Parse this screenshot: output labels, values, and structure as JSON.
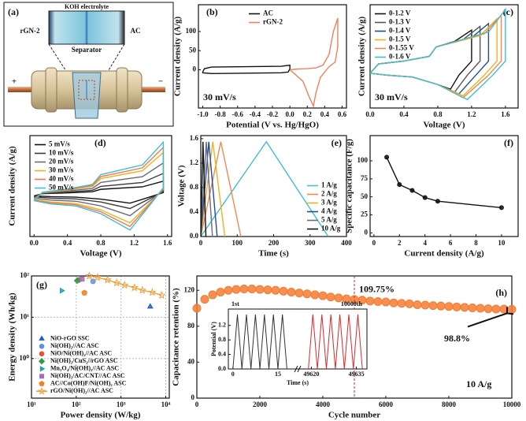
{
  "schematic": {
    "panel_label": "(a)",
    "electrolyte": "KOH electrolyte",
    "left_electrode": "rGN-2",
    "right_electrode": "AC",
    "separator": "Separator",
    "positive": "+",
    "negative": "−"
  },
  "chart_data": [
    {
      "type": "line",
      "panel_label": "(b)",
      "xlabel": "Potential (V vs. Hg/HgO)",
      "ylabel": "Current density (A/g)",
      "xlim": [
        -1.05,
        0.65
      ],
      "xticks": [
        {
          "value": -1.0,
          "label": "-1.0"
        },
        -0.8,
        -0.6,
        -0.4,
        -0.2,
        {
          "value": 0,
          "label": "0.0"
        },
        0.2,
        0.4,
        0.6
      ],
      "ylim": [
        -100,
        170
      ],
      "yticks": [
        0,
        50,
        100
      ],
      "legend": "upper center",
      "annotations": [
        {
          "text": "30 mV/s"
        }
      ],
      "series": [
        {
          "name": "AC",
          "color": "#111111",
          "x": [
            -1.0,
            -0.98,
            -0.9,
            -0.5,
            -0.1,
            0,
            0,
            -0.02,
            -0.1,
            -0.5,
            -0.9,
            -1.0,
            -1.0
          ],
          "values": [
            -5,
            3,
            7,
            8,
            9,
            12,
            2,
            -6,
            -8,
            -9,
            -10,
            -8,
            -5
          ]
        },
        {
          "name": "rGN-2",
          "color": "#f0805a",
          "x": [
            0,
            0.1,
            0.2,
            0.3,
            0.38,
            0.45,
            0.5,
            0.55,
            0.55,
            0.52,
            0.45,
            0.35,
            0.3,
            0.27,
            0.22,
            0.15,
            0.05,
            0
          ],
          "values": [
            0,
            2,
            3,
            5,
            12,
            40,
            100,
            135,
            60,
            20,
            8,
            -20,
            -60,
            -95,
            -70,
            -30,
            -10,
            0
          ]
        }
      ]
    },
    {
      "type": "line",
      "panel_label": "(c)",
      "xlabel": "Voltage (V)",
      "ylabel": "Current density (A/g)",
      "xlim": [
        0,
        1.75
      ],
      "xticks": [
        {
          "value": 0,
          "label": "0.0"
        },
        0.4,
        0.8,
        1.2,
        1.6
      ],
      "ylim": [
        -4.5,
        6.5
      ],
      "legend": "upper left",
      "annotations": [
        {
          "text": "30 mV/s"
        }
      ],
      "series": [
        {
          "name": "0-1.2 V",
          "color": "#111111",
          "x": [
            0,
            0.1,
            0.4,
            0.7,
            0.78,
            1.0,
            1.2,
            1.2,
            1.05,
            0.95,
            0.8,
            0.5,
            0.2,
            0
          ],
          "values": [
            -0.8,
            0.2,
            0.5,
            1.0,
            2.0,
            2.6,
            3.8,
            0.5,
            -1.0,
            -2.5,
            -2.0,
            -1.2,
            -1.0,
            -0.8
          ]
        },
        {
          "name": "0-1.3 V",
          "color": "#555555",
          "x": [
            0,
            0.1,
            0.4,
            0.7,
            0.78,
            1.1,
            1.3,
            1.3,
            1.15,
            1.0,
            0.8,
            0.5,
            0.2,
            0
          ],
          "values": [
            -0.8,
            0.2,
            0.5,
            1.0,
            2.0,
            2.8,
            4.2,
            0.5,
            -1.0,
            -2.8,
            -2.0,
            -1.2,
            -1.0,
            -0.8
          ]
        },
        {
          "name": "0-1.4 V",
          "color": "#1f4e9a",
          "x": [
            0,
            0.1,
            0.4,
            0.7,
            0.78,
            1.2,
            1.4,
            1.4,
            1.25,
            1.05,
            0.8,
            0.5,
            0.2,
            0
          ],
          "values": [
            -0.8,
            0.2,
            0.5,
            1.0,
            2.0,
            3.0,
            4.5,
            0.5,
            -1.0,
            -3.0,
            -2.0,
            -1.2,
            -1.0,
            -0.8
          ]
        },
        {
          "name": "0-1.5 V",
          "color": "#f0b020",
          "x": [
            0,
            0.1,
            0.4,
            0.7,
            0.78,
            1.3,
            1.5,
            1.5,
            1.35,
            1.1,
            0.8,
            0.5,
            0.2,
            0
          ],
          "values": [
            -0.8,
            0.2,
            0.5,
            1.0,
            2.0,
            3.2,
            5.0,
            0.5,
            -1.0,
            -3.2,
            -2.0,
            -1.2,
            -1.0,
            -0.8
          ]
        },
        {
          "name": "0-1.55 V",
          "color": "#f08a50",
          "x": [
            0,
            0.1,
            0.4,
            0.7,
            0.78,
            1.35,
            1.55,
            1.55,
            1.4,
            1.1,
            0.8,
            0.5,
            0.2,
            0
          ],
          "values": [
            -0.8,
            0.2,
            0.5,
            1.0,
            2.0,
            3.4,
            5.4,
            0.5,
            -1.0,
            -3.4,
            -2.0,
            -1.2,
            -1.0,
            -0.8
          ]
        },
        {
          "name": "0-1.6 V",
          "color": "#40bfd0",
          "x": [
            0,
            0.1,
            0.4,
            0.7,
            0.78,
            1.4,
            1.6,
            1.6,
            1.45,
            1.15,
            0.8,
            0.5,
            0.2,
            0
          ],
          "values": [
            -0.8,
            0.2,
            0.5,
            1.0,
            2.0,
            3.6,
            6.0,
            0.5,
            -1.0,
            -3.6,
            -2.0,
            -1.2,
            -1.0,
            -0.8
          ]
        }
      ]
    },
    {
      "type": "line",
      "panel_label": "(d)",
      "xlabel": "Voltage (V)",
      "ylabel": "Current density (A/g)",
      "xlim": [
        -0.05,
        1.65
      ],
      "xticks": [
        {
          "value": 0,
          "label": "0.0"
        },
        0.4,
        0.8,
        1.2,
        1.6
      ],
      "ylim": [
        -6.5,
        9
      ],
      "legend": "upper left",
      "x": [
        0,
        0.1,
        0.4,
        0.7,
        0.8,
        1.3,
        1.55,
        1.55,
        1.4,
        1.15,
        0.8,
        0.5,
        0.2,
        0
      ],
      "series": [
        {
          "name": "5 mV/s",
          "color": "#111111",
          "values": [
            -0.25,
            0.08,
            0.2,
            0.38,
            0.75,
            1.13,
            2,
            0.25,
            -0.38,
            -1.38,
            -0.75,
            -0.45,
            -0.38,
            -0.25
          ]
        },
        {
          "name": "10 mV/s",
          "color": "#3a3a3a",
          "values": [
            -0.4,
            0.12,
            0.32,
            0.6,
            1.2,
            1.8,
            3.2,
            0.4,
            -0.6,
            -2.2,
            -1.2,
            -0.72,
            -0.6,
            -0.4
          ]
        },
        {
          "name": "20 mV/s",
          "color": "#6a6a7a",
          "values": [
            -0.6,
            0.18,
            0.48,
            0.9,
            1.8,
            2.7,
            4.8,
            0.6,
            -0.9,
            -3.3,
            -1.8,
            -1.08,
            -0.9,
            -0.6
          ]
        },
        {
          "name": "30 mV/s",
          "color": "#f0b020",
          "values": [
            -0.8,
            0.24,
            0.64,
            1.2,
            2.4,
            3.6,
            6.4,
            0.8,
            -1.2,
            -4.4,
            -2.4,
            -1.44,
            -1.2,
            -0.8
          ]
        },
        {
          "name": "40 mV/s",
          "color": "#f07850",
          "values": [
            -0.9,
            0.27,
            0.72,
            1.35,
            2.7,
            4.05,
            7.2,
            0.9,
            -1.35,
            -4.95,
            -2.7,
            -1.62,
            -1.35,
            -0.9
          ]
        },
        {
          "name": "50 mV/s",
          "color": "#40bfd0",
          "values": [
            -1,
            0.3,
            0.8,
            1.5,
            3,
            4.5,
            8,
            1,
            -1.5,
            -5.5,
            -3,
            -1.8,
            -1.5,
            -1
          ]
        }
      ]
    },
    {
      "type": "line",
      "panel_label": "(e)",
      "xlabel": "Time (s)",
      "ylabel": "Voltage (V)",
      "xlim": [
        0,
        400
      ],
      "xticks": [
        0,
        100,
        200,
        300,
        400
      ],
      "ylim": [
        0,
        1.65
      ],
      "yticks": [
        {
          "value": 0,
          "label": "0.0"
        },
        0.4,
        0.8,
        1.2,
        1.6
      ],
      "legend": "lower right",
      "series": [
        {
          "name": "1 A/g",
          "color": "#40bfd0",
          "x": [
            0,
            180,
            350
          ],
          "values": [
            0,
            1.55,
            0
          ]
        },
        {
          "name": "2 A/g",
          "color": "#f08a50",
          "x": [
            0,
            55,
            110
          ],
          "values": [
            0,
            1.55,
            0
          ]
        },
        {
          "name": "3 A/g",
          "color": "#f0b020",
          "x": [
            0,
            33,
            66
          ],
          "values": [
            0,
            1.55,
            0
          ]
        },
        {
          "name": "4 A/g",
          "color": "#1f4e9a",
          "x": [
            0,
            22,
            45
          ],
          "values": [
            0,
            1.55,
            0
          ]
        },
        {
          "name": "5 A/g",
          "color": "#6a6a8a",
          "x": [
            0,
            15,
            32
          ],
          "values": [
            0,
            1.55,
            0
          ]
        },
        {
          "name": "10 A/g",
          "color": "#111111",
          "x": [
            0,
            6,
            14
          ],
          "values": [
            0,
            1.55,
            0
          ]
        }
      ]
    },
    {
      "type": "line",
      "panel_label": "(f)",
      "xlabel": "Current density (A/g)",
      "ylabel": "Specific capacitance (F/g)",
      "xlim": [
        -0.3,
        11.3
      ],
      "xticks": [
        0,
        2,
        4,
        6,
        8,
        10
      ],
      "ylim": [
        -5,
        135
      ],
      "yticks": [
        0,
        25,
        50,
        75,
        100
      ],
      "series": [
        {
          "color": "#111111",
          "markers": true,
          "x": [
            1,
            2,
            3,
            4,
            5,
            10
          ],
          "values": [
            105,
            67,
            59,
            49,
            44,
            35
          ]
        }
      ]
    },
    {
      "type": "scatter",
      "panel_label": "(g)",
      "xlabel": "Power density (W/kg)",
      "ylabel": "Energy density (Wh/kg)",
      "xlog": true,
      "ylog": true,
      "grid": true,
      "xlim": [
        10,
        12000
      ],
      "xticks": [
        {
          "value": 10,
          "label": "10¹"
        },
        {
          "value": 100,
          "label": "10²"
        },
        {
          "value": 1000,
          "label": "10³"
        },
        {
          "value": 10000,
          "label": "10⁴"
        }
      ],
      "ylim": [
        0.11,
        100
      ],
      "yticks": [
        {
          "value": 1,
          "label": "10⁰"
        },
        {
          "value": 10,
          "label": "10¹"
        },
        {
          "value": 100,
          "label": "10²"
        }
      ],
      "legend": "lower left",
      "series": [
        {
          "name": "NiO-rGO SSC",
          "color": "#1f5fbf",
          "marker": "triangle",
          "x": [
            4500
          ],
          "values": [
            18
          ]
        },
        {
          "name": "Ni(OH)₂//AC ASC",
          "color": "#6a8fd0",
          "marker": "circle",
          "x": [
            237
          ],
          "values": [
            74
          ]
        },
        {
          "name": "NiO/Ni(OH)₂//AC ASC",
          "color": "#e8503a",
          "marker": "circle",
          "x": [
            115
          ],
          "values": [
            80
          ]
        },
        {
          "name": "Ni(OH)₂/CuS₂//rGO ASC",
          "color": "#2a9d4a",
          "marker": "diamond",
          "x": [
            105
          ],
          "values": [
            77
          ]
        },
        {
          "name": "Mn₃O₄/Ni(OH)₂//AC ASC",
          "color": "#20a0b0",
          "marker": "triangle-right",
          "x": [
            47
          ],
          "values": [
            44
          ]
        },
        {
          "name": "Ni(OH)₂/AC/CNT//AC ASC",
          "color": "#a070c0",
          "marker": "square",
          "x": [
            135
          ],
          "values": [
            84
          ]
        },
        {
          "name": "AC//Co(OH)F/Ni(OH)₂ ASC",
          "color": "#f08020",
          "marker": "pentagon",
          "x": [
            152
          ],
          "values": [
            39
          ]
        },
        {
          "name": "rGO/Ni(OH)₂//AC ASC",
          "color": "#f0a040",
          "marker": "star",
          "hollow": true,
          "line": true,
          "x": [
            195,
            300,
            500,
            800,
            1200,
            2000,
            3000,
            5000,
            8100
          ],
          "values": [
            100,
            92,
            80,
            68,
            60,
            52,
            45,
            40,
            34
          ]
        }
      ]
    },
    {
      "type": "scatter",
      "panel_label": "(h)",
      "xlabel": "Cycle number",
      "ylabel": "Capacitance retention (%)",
      "xlim": [
        0,
        10000
      ],
      "xticks": [
        0,
        2000,
        4000,
        6000,
        8000,
        10000
      ],
      "ylim": [
        0,
        136
      ],
      "yticks": [
        0,
        40,
        80,
        120
      ],
      "annotations": [
        {
          "text": "109.75%",
          "x": 5000,
          "y": 109.75
        },
        {
          "text": "98.8%",
          "x": 10000,
          "y": 98.8
        },
        {
          "text": "10 A/g"
        }
      ],
      "series": [
        {
          "color": "#f47b30",
          "marker": "circle",
          "x": [
            0,
            250,
            500,
            750,
            1000,
            1250,
            1500,
            1750,
            2000,
            2250,
            2500,
            2750,
            3000,
            3250,
            3500,
            3750,
            4000,
            4250,
            4500,
            4750,
            5000,
            5250,
            5500,
            5750,
            6000,
            6250,
            6500,
            6750,
            7000,
            7250,
            7500,
            7750,
            8000,
            8250,
            8500,
            8750,
            9000,
            9250,
            9500,
            9750,
            10000
          ],
          "values": [
            100,
            110,
            115,
            118,
            120,
            121,
            121.5,
            121.5,
            121,
            120.5,
            120,
            119,
            118,
            117,
            116,
            115,
            114,
            112.5,
            111.5,
            110.5,
            109.75,
            109,
            108,
            107.5,
            107,
            106,
            105.5,
            105,
            104,
            103.5,
            103,
            102.5,
            102,
            101.5,
            101,
            100.5,
            100,
            99.5,
            99.2,
            99,
            98.8
          ]
        }
      ],
      "inset": {
        "type": "line",
        "ylabel": "Potential (V)",
        "xlabel": "Time (s)",
        "ylim": [
          0,
          1.65
        ],
        "yticks": [
          {
            "value": 0,
            "label": "0.0"
          },
          0.4,
          0.8,
          1.2
        ],
        "panels": [
          {
            "label": "1st",
            "color": "#333333",
            "xlim": [
              -1,
              20
            ],
            "xticks": [
              0,
              15
            ],
            "x": [
              0,
              1.5,
              3,
              4.5,
              6,
              7.5,
              9,
              10.5,
              12,
              13.5,
              15,
              16.5,
              18
            ],
            "values": [
              0,
              1.5,
              0,
              1.5,
              0,
              1.5,
              0,
              1.5,
              0,
              1.5,
              0,
              1.5,
              0
            ]
          },
          {
            "label": "10000th",
            "color": "#e0262b",
            "xlim": [
              49617,
              49638
            ],
            "xticks": [
              49620,
              49635
            ],
            "x": [
              49619,
              49620.5,
              49622,
              49623.5,
              49625,
              49626.5,
              49628,
              49629.5,
              49631,
              49632.5,
              49634,
              49635.5,
              49637
            ],
            "values": [
              0,
              1.5,
              0,
              1.5,
              0,
              1.5,
              0,
              1.5,
              0,
              1.5,
              0,
              1.5,
              0
            ]
          }
        ]
      }
    }
  ]
}
